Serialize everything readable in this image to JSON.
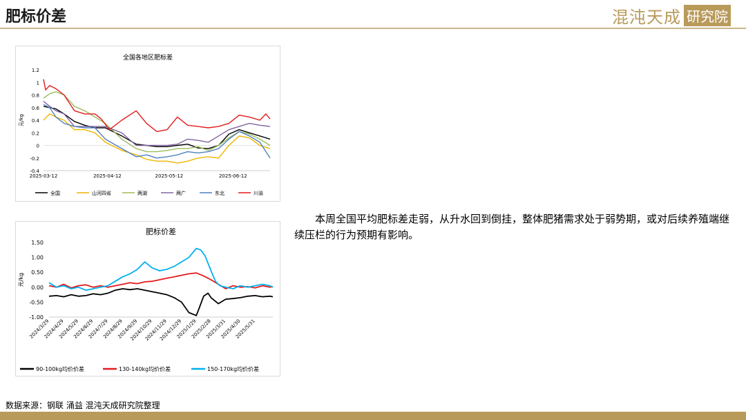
{
  "header": {
    "title": "肥标价差",
    "logo_text": "混沌天成",
    "logo_box": "研究院",
    "accent": "#b89a5b"
  },
  "chart_data": [
    {
      "type": "line",
      "title": "全国各地区肥标差",
      "ylabel": "元/kg",
      "xlabel": "",
      "ylim": [
        -0.4,
        1.2
      ],
      "yticks": [
        -0.4,
        -0.2,
        0,
        0.2,
        0.4,
        0.6,
        0.8,
        1,
        1.2
      ],
      "ytick_labels": [
        "-0.4",
        "-0.2",
        "0",
        "0.2",
        "0.4",
        "0.6",
        "0.8",
        "1",
        "1.2"
      ],
      "xtick_labels": [
        "2025-03-12",
        "2025-04-12",
        "2025-05-12",
        "2025-06-12"
      ],
      "x_range_days": [
        0,
        110
      ],
      "xtick_days": [
        0,
        31,
        61,
        92
      ],
      "legend_position": "bottom",
      "series": [
        {
          "name": "全国",
          "color": "#000000",
          "x": [
            0,
            3,
            6,
            10,
            15,
            20,
            25,
            30,
            38,
            45,
            50,
            55,
            60,
            65,
            70,
            75,
            80,
            85,
            90,
            95,
            100,
            105,
            110
          ],
          "values": [
            0.62,
            0.6,
            0.58,
            0.5,
            0.38,
            0.32,
            0.28,
            0.28,
            0.15,
            0.02,
            0.0,
            -0.02,
            -0.02,
            0.0,
            0.02,
            -0.04,
            -0.05,
            0.0,
            0.18,
            0.25,
            0.2,
            0.15,
            0.1
          ]
        },
        {
          "name": "山河四省",
          "color": "#f0b400",
          "x": [
            0,
            3,
            6,
            10,
            15,
            20,
            25,
            30,
            38,
            45,
            50,
            55,
            60,
            65,
            70,
            75,
            80,
            85,
            90,
            95,
            100,
            105,
            110
          ],
          "values": [
            0.4,
            0.5,
            0.45,
            0.4,
            0.25,
            0.25,
            0.2,
            0.05,
            -0.08,
            -0.15,
            -0.22,
            -0.25,
            -0.25,
            -0.28,
            -0.25,
            -0.2,
            -0.18,
            -0.2,
            0.0,
            0.15,
            0.12,
            0.0,
            -0.05
          ]
        },
        {
          "name": "两湖",
          "color": "#9bbb59",
          "x": [
            0,
            3,
            6,
            10,
            15,
            20,
            25,
            30,
            38,
            45,
            50,
            55,
            60,
            65,
            70,
            75,
            80,
            85,
            90,
            95,
            100,
            105,
            110
          ],
          "values": [
            0.75,
            0.82,
            0.85,
            0.8,
            0.62,
            0.55,
            0.45,
            0.35,
            0.1,
            -0.05,
            -0.1,
            -0.1,
            -0.08,
            -0.05,
            -0.05,
            -0.02,
            -0.08,
            0.0,
            0.12,
            0.22,
            0.18,
            0.1,
            0.0
          ]
        },
        {
          "name": "两广",
          "color": "#8064a2",
          "x": [
            0,
            3,
            6,
            10,
            15,
            20,
            25,
            30,
            38,
            45,
            50,
            55,
            60,
            65,
            70,
            75,
            80,
            85,
            90,
            95,
            100,
            105,
            110
          ],
          "values": [
            0.7,
            0.62,
            0.55,
            0.5,
            0.3,
            0.3,
            0.3,
            0.3,
            0.2,
            0.0,
            0.0,
            0.0,
            0.0,
            0.02,
            0.1,
            0.08,
            0.05,
            0.15,
            0.25,
            0.3,
            0.35,
            0.32,
            0.3
          ]
        },
        {
          "name": "东北",
          "color": "#4f81bd",
          "x": [
            0,
            3,
            6,
            10,
            15,
            20,
            25,
            30,
            38,
            45,
            50,
            55,
            60,
            65,
            70,
            75,
            80,
            85,
            90,
            95,
            100,
            105,
            110
          ],
          "values": [
            0.65,
            0.6,
            0.45,
            0.35,
            0.3,
            0.28,
            0.28,
            0.1,
            -0.05,
            -0.18,
            -0.15,
            -0.2,
            -0.18,
            -0.15,
            -0.1,
            -0.12,
            -0.1,
            -0.05,
            0.1,
            0.22,
            0.15,
            0.05,
            -0.2
          ]
        },
        {
          "name": "川渝",
          "color": "#e31a1c",
          "x": [
            0,
            1,
            3,
            6,
            10,
            15,
            20,
            25,
            28,
            32,
            38,
            45,
            50,
            55,
            60,
            65,
            70,
            75,
            80,
            85,
            90,
            95,
            100,
            105,
            108,
            110
          ],
          "values": [
            1.05,
            0.88,
            0.95,
            0.9,
            0.8,
            0.55,
            0.5,
            0.5,
            0.42,
            0.25,
            0.4,
            0.55,
            0.35,
            0.22,
            0.25,
            0.45,
            0.32,
            0.3,
            0.28,
            0.3,
            0.35,
            0.48,
            0.45,
            0.4,
            0.5,
            0.42
          ]
        }
      ]
    },
    {
      "type": "line",
      "title": "肥标价差",
      "ylabel": "元/kg",
      "xlabel": "",
      "ylim": [
        -1.0,
        1.5
      ],
      "yticks": [
        -1.0,
        -0.5,
        0,
        0.5,
        1.0,
        1.5
      ],
      "ytick_labels": [
        "-1.00",
        "-0.50",
        "0.00",
        "0.50",
        "1.00",
        "1.50"
      ],
      "xtick_labels": [
        "2024/3/29",
        "2024/4/29",
        "2024/5/29",
        "2024/6/29",
        "2024/7/29",
        "2024/8/29",
        "2024/9/29",
        "2024/10/29",
        "2024/11/29",
        "2024/12/29",
        "2025/1/29",
        "2025/2/28",
        "2025/3/31",
        "2025/4/30",
        "2025/5/31"
      ],
      "x_range_months": [
        0,
        15.2
      ],
      "legend_position": "bottom",
      "series": [
        {
          "name": "90-100kg均价价差",
          "color": "#000000",
          "x": [
            0,
            0.5,
            1,
            1.5,
            2,
            2.5,
            3,
            3.5,
            4,
            4.5,
            5,
            5.5,
            6,
            6.5,
            7,
            7.5,
            8,
            8.5,
            9,
            9.5,
            10,
            10.2,
            10.5,
            10.8,
            11,
            11.5,
            12,
            12.5,
            13,
            13.5,
            14,
            14.5,
            15,
            15.2
          ],
          "values": [
            -0.3,
            -0.28,
            -0.32,
            -0.25,
            -0.3,
            -0.28,
            -0.22,
            -0.25,
            -0.2,
            -0.1,
            -0.05,
            -0.08,
            -0.05,
            -0.1,
            -0.15,
            -0.2,
            -0.25,
            -0.35,
            -0.5,
            -0.85,
            -0.95,
            -0.7,
            -0.3,
            -0.2,
            -0.35,
            -0.55,
            -0.4,
            -0.38,
            -0.35,
            -0.3,
            -0.28,
            -0.32,
            -0.3,
            -0.32
          ]
        },
        {
          "name": "130-140kg均价价差",
          "color": "#e31a1c",
          "x": [
            0,
            0.5,
            1,
            1.5,
            2,
            2.5,
            3,
            3.5,
            4,
            4.5,
            5,
            5.5,
            6,
            6.5,
            7,
            7.5,
            8,
            8.5,
            9,
            9.5,
            10,
            10.5,
            11,
            11.5,
            12,
            12.5,
            13,
            13.5,
            14,
            14.5,
            15,
            15.2
          ],
          "values": [
            0.05,
            0.0,
            0.1,
            -0.02,
            0.05,
            0.08,
            0.0,
            0.05,
            0.0,
            0.05,
            0.1,
            0.15,
            0.12,
            0.18,
            0.2,
            0.25,
            0.3,
            0.35,
            0.4,
            0.45,
            0.48,
            0.38,
            0.25,
            0.1,
            -0.05,
            0.05,
            0.0,
            0.02,
            -0.02,
            0.05,
            0.0,
            0.02
          ]
        },
        {
          "name": "150-170kg均价价差",
          "color": "#00b0f0",
          "x": [
            0,
            0.5,
            1,
            1.5,
            2,
            2.5,
            3,
            3.5,
            4,
            4.5,
            5,
            5.5,
            6,
            6.5,
            7,
            7.5,
            8,
            8.5,
            9,
            9.5,
            10,
            10.3,
            10.6,
            11,
            11.3,
            11.6,
            12,
            12.5,
            13,
            13.5,
            14,
            14.5,
            15,
            15.2
          ],
          "values": [
            0.15,
            0.0,
            0.05,
            -0.05,
            0.0,
            -0.1,
            -0.05,
            0.0,
            0.05,
            0.2,
            0.35,
            0.45,
            0.6,
            0.85,
            0.65,
            0.55,
            0.6,
            0.7,
            0.85,
            1.0,
            1.3,
            1.25,
            1.05,
            0.55,
            0.2,
            0.05,
            0.0,
            -0.05,
            0.05,
            0.0,
            0.05,
            0.1,
            0.05,
            0.0
          ]
        }
      ]
    }
  ],
  "body_text": "本周全国平均肥标差走弱，从升水回到倒挂，整体肥猪需求处于弱势期，或对后续养殖端继续压栏的行为预期有影响。",
  "source": "数据来源：钢联  涌益  混沌天成研究院整理"
}
